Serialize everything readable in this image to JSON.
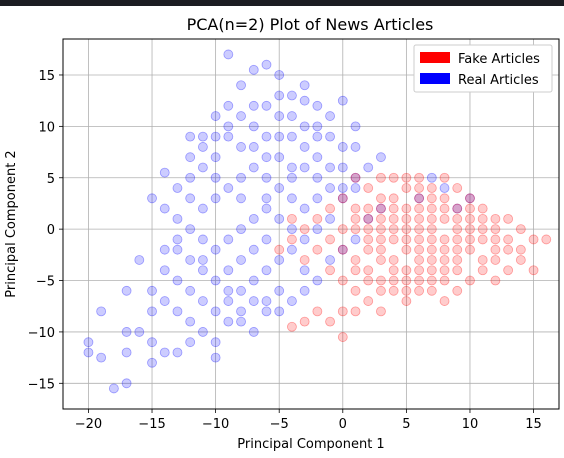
{
  "chart_data": {
    "type": "scatter",
    "title": "PCA(n=2) Plot of News Articles",
    "xlabel": "Principal Component 1",
    "ylabel": "Principal Component 2",
    "xlim": [
      -22,
      17
    ],
    "ylim": [
      -17.5,
      18.5
    ],
    "xticks": [
      -20,
      -15,
      -10,
      -5,
      0,
      5,
      10,
      15
    ],
    "yticks": [
      -15,
      -10,
      -5,
      0,
      5,
      10,
      15
    ],
    "grid": true,
    "legend_position": "top-right",
    "series": [
      {
        "name": "Fake Articles",
        "color": "#ff0000",
        "points": [
          [
            2,
            0
          ],
          [
            3,
            1
          ],
          [
            4,
            -1
          ],
          [
            5,
            0
          ],
          [
            6,
            -2
          ],
          [
            7,
            -1
          ],
          [
            8,
            -2
          ],
          [
            9,
            -1
          ],
          [
            5,
            2
          ],
          [
            6,
            1
          ],
          [
            4,
            -3
          ],
          [
            3,
            -2
          ],
          [
            7,
            0
          ],
          [
            8,
            1
          ],
          [
            6,
            -3
          ],
          [
            5,
            -4
          ],
          [
            9,
            -3
          ],
          [
            10,
            -2
          ],
          [
            11,
            -1
          ],
          [
            12,
            -2
          ],
          [
            13,
            -1
          ],
          [
            14,
            -2
          ],
          [
            15,
            -1
          ],
          [
            14,
            -3
          ],
          [
            13,
            -4
          ],
          [
            12,
            0
          ],
          [
            11,
            1
          ],
          [
            10,
            0
          ],
          [
            9,
            2
          ],
          [
            8,
            3
          ],
          [
            7,
            2
          ],
          [
            6,
            3
          ],
          [
            5,
            4
          ],
          [
            4,
            2
          ],
          [
            3,
            3
          ],
          [
            2,
            2
          ],
          [
            1,
            1
          ],
          [
            0,
            0
          ],
          [
            -1,
            -1
          ],
          [
            -2,
            -2
          ],
          [
            -3,
            -3
          ],
          [
            -4,
            -1
          ],
          [
            -5,
            -2
          ],
          [
            1,
            -3
          ],
          [
            2,
            -4
          ],
          [
            3,
            -5
          ],
          [
            4,
            -6
          ],
          [
            2,
            -7
          ],
          [
            1,
            -6
          ],
          [
            0,
            -8
          ],
          [
            -1,
            -9
          ],
          [
            -2,
            -8
          ],
          [
            -3,
            -9
          ],
          [
            -4,
            -9.5
          ],
          [
            0,
            -10.5
          ],
          [
            6,
            -6
          ],
          [
            8,
            -5
          ],
          [
            7,
            -6
          ],
          [
            5,
            -7
          ],
          [
            3,
            -8
          ],
          [
            1,
            -8
          ],
          [
            16,
            -1
          ],
          [
            15,
            -4
          ],
          [
            14,
            0
          ],
          [
            13,
            1
          ],
          [
            12,
            -5
          ],
          [
            11,
            -4
          ],
          [
            10,
            -5
          ],
          [
            9,
            -6
          ],
          [
            8,
            -7
          ],
          [
            10,
            3
          ],
          [
            9,
            4
          ],
          [
            8,
            5
          ],
          [
            7,
            4
          ],
          [
            6,
            5
          ],
          [
            3,
            5
          ],
          [
            2,
            4
          ],
          [
            1,
            5
          ],
          [
            0,
            3
          ],
          [
            -1,
            2
          ],
          [
            -2,
            1
          ],
          [
            -3,
            0
          ],
          [
            -4,
            1
          ],
          [
            2,
            -1
          ],
          [
            3,
            -1
          ],
          [
            4,
            1
          ],
          [
            5,
            -1
          ],
          [
            6,
            0
          ],
          [
            7,
            -3
          ],
          [
            8,
            -4
          ],
          [
            9,
            0
          ],
          [
            10,
            -1
          ],
          [
            11,
            -3
          ],
          [
            12,
            -3
          ],
          [
            13,
            -2
          ],
          [
            3,
            0
          ],
          [
            4,
            0
          ],
          [
            5,
            1
          ],
          [
            6,
            2
          ],
          [
            7,
            1
          ],
          [
            2,
            1
          ],
          [
            3,
            2
          ],
          [
            4,
            3
          ],
          [
            5,
            -2
          ],
          [
            6,
            -1
          ],
          [
            7,
            -2
          ],
          [
            8,
            -1
          ],
          [
            9,
            -2
          ],
          [
            10,
            1
          ],
          [
            11,
            0
          ],
          [
            12,
            -1
          ],
          [
            1,
            0
          ],
          [
            2,
            -2
          ],
          [
            3,
            -3
          ],
          [
            4,
            -4
          ],
          [
            5,
            -5
          ],
          [
            6,
            -4
          ],
          [
            7,
            -5
          ],
          [
            8,
            -3
          ],
          [
            9,
            -4
          ],
          [
            4,
            5
          ],
          [
            5,
            5
          ],
          [
            6,
            4
          ],
          [
            7,
            3
          ],
          [
            8,
            2
          ],
          [
            9,
            1
          ],
          [
            10,
            2
          ],
          [
            11,
            2
          ],
          [
            12,
            1
          ],
          [
            1,
            2
          ],
          [
            0,
            -2
          ],
          [
            -1,
            -4
          ],
          [
            0,
            -5
          ],
          [
            1,
            -4
          ],
          [
            2,
            -5
          ],
          [
            3,
            -6
          ],
          [
            4,
            -5
          ],
          [
            5,
            -6
          ],
          [
            6,
            -5
          ],
          [
            7,
            -4
          ]
        ]
      },
      {
        "name": "Real Articles",
        "color": "#0000ff",
        "points": [
          [
            -9,
            17
          ],
          [
            -6,
            16
          ],
          [
            -7,
            15.5
          ],
          [
            -5,
            15
          ],
          [
            -8,
            14
          ],
          [
            -4,
            13
          ],
          [
            -3,
            12.5
          ],
          [
            -6,
            12
          ],
          [
            -2,
            12
          ],
          [
            0,
            12.5
          ],
          [
            -10,
            11
          ],
          [
            -9,
            12
          ],
          [
            -7,
            10
          ],
          [
            -5,
            11
          ],
          [
            -3,
            10
          ],
          [
            -1,
            11
          ],
          [
            1,
            10
          ],
          [
            -4,
            9
          ],
          [
            -2,
            9
          ],
          [
            0,
            8
          ],
          [
            -12,
            9
          ],
          [
            -11,
            8
          ],
          [
            -10,
            7
          ],
          [
            -8,
            8
          ],
          [
            -6,
            7
          ],
          [
            -4,
            6
          ],
          [
            -2,
            7
          ],
          [
            0,
            6
          ],
          [
            1,
            5
          ],
          [
            -14,
            5.5
          ],
          [
            -13,
            4
          ],
          [
            -12,
            3
          ],
          [
            -11,
            2
          ],
          [
            -10,
            3
          ],
          [
            -9,
            4
          ],
          [
            -8,
            5
          ],
          [
            -7,
            6
          ],
          [
            -6,
            5
          ],
          [
            -5,
            4
          ],
          [
            -4,
            3
          ],
          [
            -3,
            2
          ],
          [
            -2,
            3
          ],
          [
            -1,
            4
          ],
          [
            0,
            3
          ],
          [
            -15,
            3
          ],
          [
            -14,
            2
          ],
          [
            -13,
            1
          ],
          [
            -12,
            0
          ],
          [
            -11,
            -1
          ],
          [
            -10,
            -2
          ],
          [
            -9,
            -1
          ],
          [
            -8,
            0
          ],
          [
            -7,
            1
          ],
          [
            -6,
            2
          ],
          [
            -5,
            1
          ],
          [
            -4,
            0
          ],
          [
            -3,
            -1
          ],
          [
            -2,
            0
          ],
          [
            -1,
            1
          ],
          [
            -13,
            -2
          ],
          [
            -12,
            -3
          ],
          [
            -11,
            -4
          ],
          [
            -10,
            -5
          ],
          [
            -9,
            -4
          ],
          [
            -8,
            -3
          ],
          [
            -7,
            -2
          ],
          [
            -6,
            -1
          ],
          [
            -5,
            -3
          ],
          [
            -4,
            -2
          ],
          [
            -3,
            -4
          ],
          [
            -14,
            -4
          ],
          [
            -13,
            -5
          ],
          [
            -12,
            -6
          ],
          [
            -11,
            -7
          ],
          [
            -10,
            -8
          ],
          [
            -9,
            -7
          ],
          [
            -8,
            -6
          ],
          [
            -7,
            -5
          ],
          [
            -6,
            -4
          ],
          [
            -5,
            -6
          ],
          [
            -15,
            -6
          ],
          [
            -14,
            -7
          ],
          [
            -13,
            -8
          ],
          [
            -12,
            -9
          ],
          [
            -11,
            -10
          ],
          [
            -10,
            -11
          ],
          [
            -9,
            -9
          ],
          [
            -8,
            -8
          ],
          [
            -7,
            -7
          ],
          [
            -6,
            -8
          ],
          [
            -16,
            -10
          ],
          [
            -15,
            -11
          ],
          [
            -14,
            -12
          ],
          [
            -13,
            -12
          ],
          [
            -12,
            -11
          ],
          [
            -10,
            -12.5
          ],
          [
            -15,
            -13
          ],
          [
            -17,
            -12
          ],
          [
            -17,
            -15
          ],
          [
            -18,
            -15.5
          ],
          [
            -19,
            -12.5
          ],
          [
            -20,
            -11
          ],
          [
            -20,
            -12
          ],
          [
            -19,
            -8
          ],
          [
            -17,
            -10
          ],
          [
            -17,
            -6
          ],
          [
            -15,
            -8
          ],
          [
            -16,
            -3
          ],
          [
            -14,
            -2
          ],
          [
            -13,
            -1
          ],
          [
            -11,
            -3
          ],
          [
            -9,
            -6
          ],
          [
            -8,
            -9
          ],
          [
            -7,
            -10
          ],
          [
            -6,
            -7
          ],
          [
            -5,
            -8
          ],
          [
            -4,
            -7
          ],
          [
            -3,
            -6
          ],
          [
            -2,
            -5
          ],
          [
            -1,
            -3
          ],
          [
            0,
            -2
          ],
          [
            1,
            -1
          ],
          [
            2,
            1
          ],
          [
            3,
            2
          ],
          [
            1,
            4
          ],
          [
            -1,
            6
          ],
          [
            -3,
            8
          ],
          [
            -5,
            9
          ],
          [
            -7,
            8
          ],
          [
            -9,
            9
          ],
          [
            -11,
            6
          ],
          [
            -12,
            5
          ],
          [
            -10,
            5
          ],
          [
            -8,
            3
          ],
          [
            -6,
            3
          ],
          [
            -4,
            5
          ],
          [
            -2,
            5
          ],
          [
            0,
            4
          ],
          [
            -5,
            7
          ],
          [
            -3,
            6
          ],
          [
            -6,
            9
          ],
          [
            -4,
            11
          ],
          [
            -8,
            11
          ],
          [
            -9,
            10
          ],
          [
            -10,
            9
          ],
          [
            -12,
            7
          ],
          [
            -11,
            9
          ],
          [
            -7,
            12
          ],
          [
            -5,
            13
          ],
          [
            -3,
            14
          ],
          [
            10,
            3
          ],
          [
            9,
            2
          ],
          [
            7,
            5
          ],
          [
            8,
            4
          ],
          [
            6,
            3
          ],
          [
            2,
            6
          ],
          [
            3,
            7
          ],
          [
            -2,
            10
          ],
          [
            -1,
            9
          ],
          [
            1,
            8
          ]
        ]
      }
    ]
  }
}
